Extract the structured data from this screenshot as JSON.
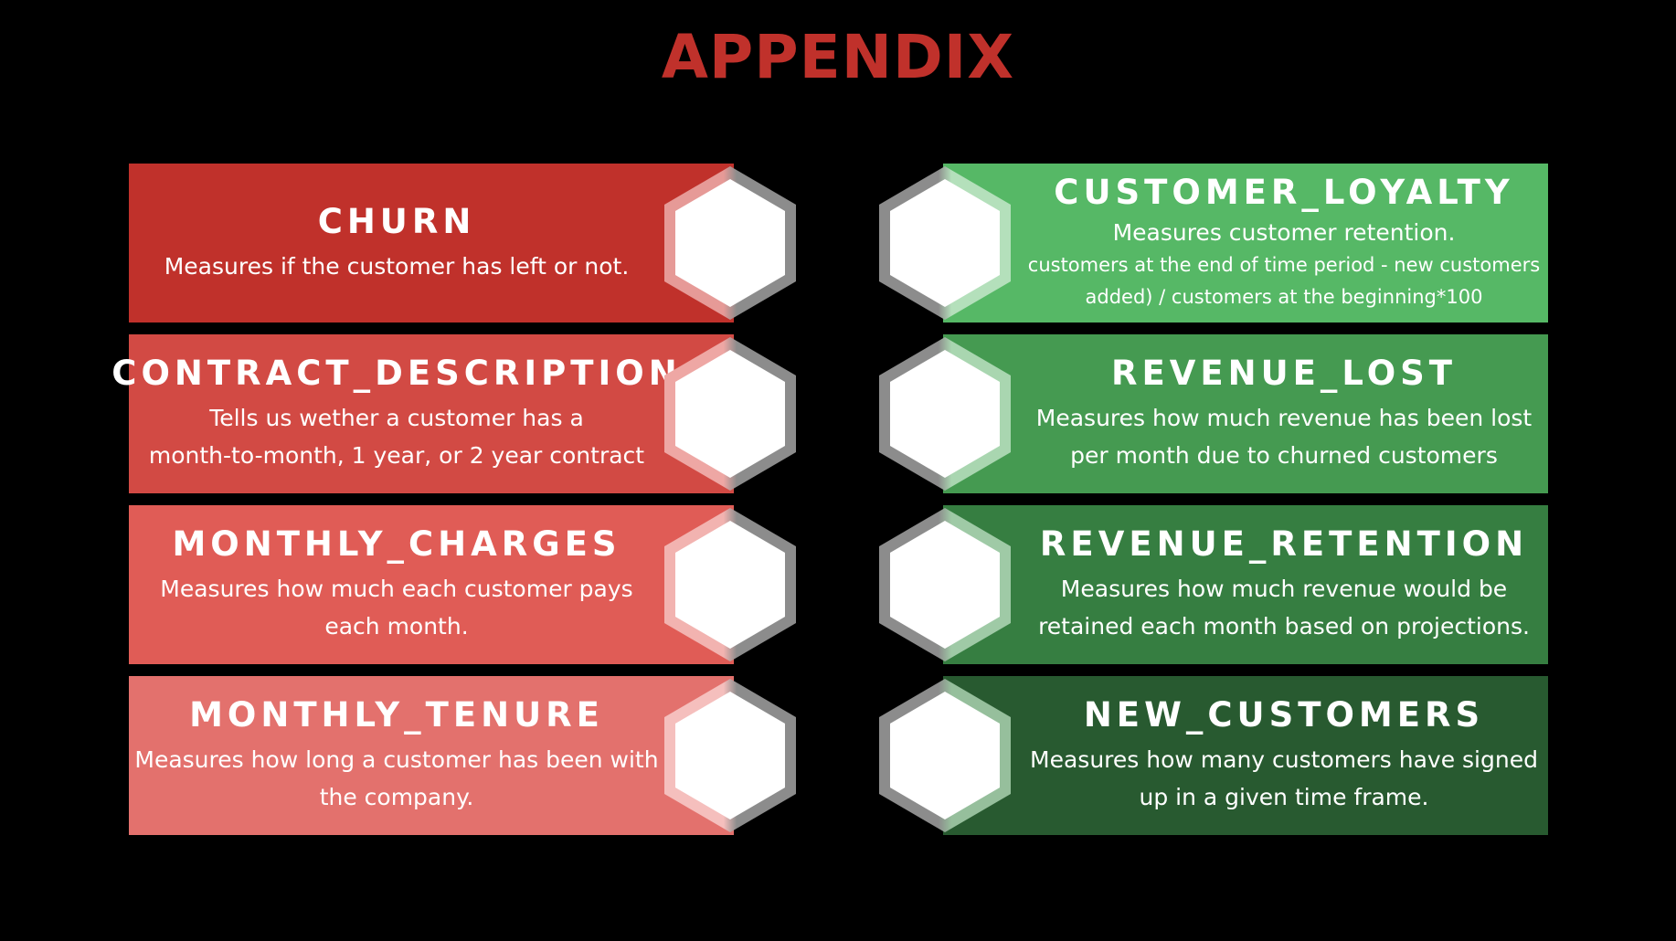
{
  "title": "APPENDIX",
  "colors": {
    "background": "#000000",
    "title": "#c0312b",
    "hex_fill": "#ffffff",
    "hex_border": "#8c8c8c"
  },
  "left_cards": [
    {
      "heading": "CHURN",
      "lines": [
        "Measures if the customer has left or not."
      ],
      "color": "#c0312b",
      "edge_color": "#e69a97"
    },
    {
      "heading": "CONTRACT_DESCRIPTION",
      "lines": [
        "Tells us wether a customer has a",
        "month-to-month, 1 year, or 2 year contract"
      ],
      "color": "#d24a44",
      "edge_color": "#eea7a4"
    },
    {
      "heading": "MONTHLY_CHARGES",
      "lines": [
        "Measures how much each customer pays",
        "each month."
      ],
      "color": "#e05c56",
      "edge_color": "#f2b3b0"
    },
    {
      "heading": "MONTHLY_TENURE",
      "lines": [
        "Measures how long a customer has been with",
        "the company."
      ],
      "color": "#e3716d",
      "edge_color": "#f5bfbd"
    }
  ],
  "right_cards": [
    {
      "heading": "CUSTOMER_LOYALTY",
      "lines": [
        "Measures customer retention."
      ],
      "sub_lines": [
        "customers at the end of time period - new customers",
        "added) / customers at the beginning*100"
      ],
      "color": "#56b866",
      "edge_color": "#b4e0bb"
    },
    {
      "heading": "REVENUE_LOST",
      "lines": [
        "Measures how much revenue has been lost",
        "per month due to churned customers"
      ],
      "sub_lines": [],
      "color": "#459a51",
      "edge_color": "#a9d6b0"
    },
    {
      "heading": "REVENUE_RETENTION",
      "lines": [
        "Measures how much revenue would be",
        "retained each month based on projections."
      ],
      "sub_lines": [],
      "color": "#367e41",
      "edge_color": "#9fcaa6"
    },
    {
      "heading": "NEW_CUSTOMERS",
      "lines": [
        "Measures how many customers have signed",
        "up in a given time frame."
      ],
      "sub_lines": [],
      "color": "#285a30",
      "edge_color": "#96bf9c"
    }
  ]
}
